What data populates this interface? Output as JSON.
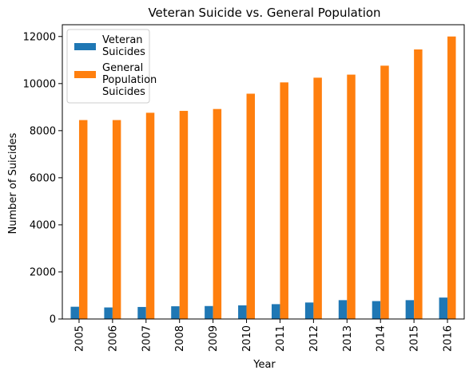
{
  "chart_data": {
    "type": "bar",
    "title": "Veteran Suicide vs. General Population",
    "xlabel": "Year",
    "ylabel": "Number of Suicides",
    "categories": [
      "2005",
      "2006",
      "2007",
      "2008",
      "2009",
      "2010",
      "2011",
      "2012",
      "2013",
      "2014",
      "2015",
      "2016"
    ],
    "series": [
      {
        "name": "Veteran Suicides",
        "legend_lines": [
          "Veteran",
          "Suicides"
        ],
        "color": "#1f77b4",
        "values": [
          520,
          490,
          510,
          540,
          550,
          580,
          630,
          700,
          800,
          760,
          800,
          910
        ]
      },
      {
        "name": "General Population Suicides",
        "legend_lines": [
          "General",
          "Population",
          "Suicides"
        ],
        "color": "#ff7f0e",
        "values": [
          8450,
          8450,
          8760,
          8840,
          8920,
          9570,
          10050,
          10250,
          10380,
          10760,
          11450,
          12000
        ]
      }
    ],
    "ylim": [
      0,
      12500
    ],
    "yticks": [
      0,
      2000,
      4000,
      6000,
      8000,
      10000,
      12000
    ],
    "grid": false,
    "legend_position": "top-left"
  }
}
